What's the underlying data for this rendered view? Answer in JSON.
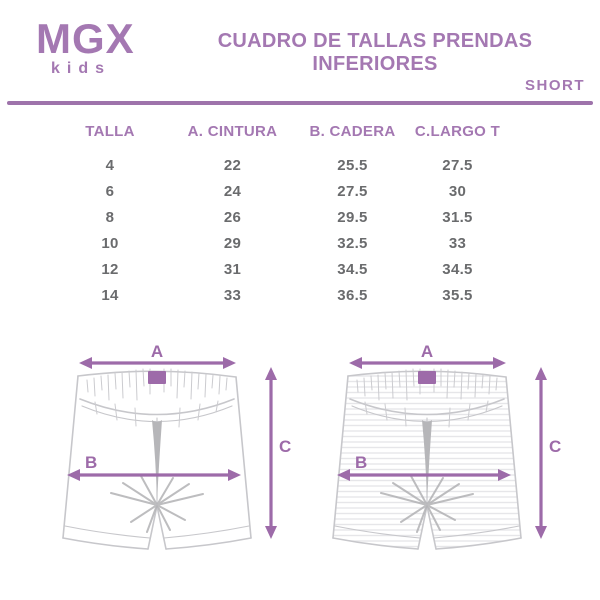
{
  "brand": {
    "name": "MGX",
    "sub": "kids"
  },
  "header": {
    "title": "CUADRO DE TALLAS PRENDAS INFERIORES",
    "product": "SHORT"
  },
  "table": {
    "columns": [
      "TALLA",
      "A. CINTURA",
      "B. CADERA",
      "C.LARGO T"
    ],
    "rows": [
      [
        "4",
        "22",
        "25.5",
        "27.5"
      ],
      [
        "6",
        "24",
        "27.5",
        "30"
      ],
      [
        "8",
        "26",
        "29.5",
        "31.5"
      ],
      [
        "10",
        "29",
        "32.5",
        "33"
      ],
      [
        "12",
        "31",
        "34.5",
        "34.5"
      ],
      [
        "14",
        "33",
        "36.5",
        "35.5"
      ]
    ]
  },
  "diagram": {
    "labels": {
      "a": "A",
      "b": "B",
      "c": "C"
    }
  },
  "colors": {
    "brand_purple": "#a478b2",
    "arrow_purple": "#9d6ba9",
    "value_gray": "#6a6b6d",
    "sketch_gray": "#c7c7cb"
  }
}
